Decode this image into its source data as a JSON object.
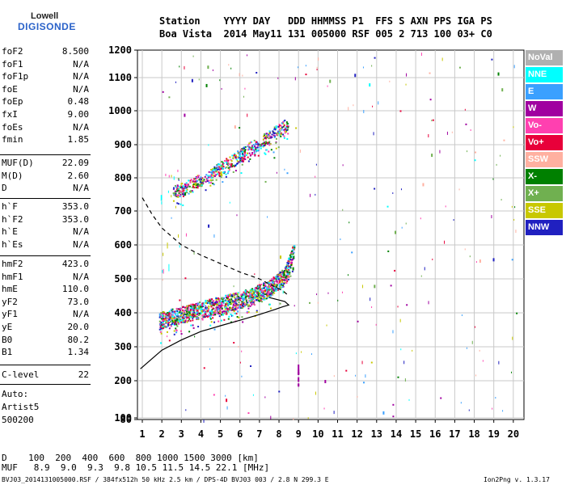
{
  "logo": {
    "line1": "Lowell",
    "line2": "DIGISONDE"
  },
  "header": {
    "row1": "Station    YYYY DAY   DDD HHMMSS P1  FFS S AXN PPS IGA PS",
    "row2": "Boa Vista  2014 May11 131 005000 RSF 005 2 713 100 03+ C0"
  },
  "params": {
    "group1": [
      {
        "k": "foF2",
        "v": "8.500"
      },
      {
        "k": "foF1",
        "v": "N/A"
      },
      {
        "k": "foF1p",
        "v": "N/A"
      },
      {
        "k": "foE",
        "v": "N/A"
      },
      {
        "k": "foEp",
        "v": "0.48"
      },
      {
        "k": "fxI",
        "v": "9.00"
      },
      {
        "k": "foEs",
        "v": "N/A"
      },
      {
        "k": "fmin",
        "v": "1.85"
      }
    ],
    "group2": [
      {
        "k": "MUF(D)",
        "v": "22.09"
      },
      {
        "k": "M(D)",
        "v": "2.60"
      },
      {
        "k": "D",
        "v": "N/A"
      }
    ],
    "group3": [
      {
        "k": "h`F",
        "v": "353.0"
      },
      {
        "k": "h`F2",
        "v": "353.0"
      },
      {
        "k": "h`E",
        "v": "N/A"
      },
      {
        "k": "h`Es",
        "v": "N/A"
      }
    ],
    "group4": [
      {
        "k": "hmF2",
        "v": "423.0"
      },
      {
        "k": "hmF1",
        "v": "N/A"
      },
      {
        "k": "hmE",
        "v": "110.0"
      },
      {
        "k": "yF2",
        "v": "73.0"
      },
      {
        "k": "yF1",
        "v": "N/A"
      },
      {
        "k": "yE",
        "v": "20.0"
      },
      {
        "k": "B0",
        "v": "80.2"
      },
      {
        "k": "B1",
        "v": "1.34"
      }
    ],
    "group5": [
      {
        "k": "C-level",
        "v": "22"
      }
    ],
    "auto": [
      "Auto:",
      "Artist5",
      "500200"
    ]
  },
  "legend": [
    {
      "label": "NoVal",
      "color": "#b0b0b0"
    },
    {
      "label": "NNE",
      "color": "#00ffff"
    },
    {
      "label": "E",
      "color": "#3aa0ff"
    },
    {
      "label": "W",
      "color": "#a000a0"
    },
    {
      "label": "Vo-",
      "color": "#ff40b0"
    },
    {
      "label": "Vo+",
      "color": "#e8003a"
    },
    {
      "label": "SSW",
      "color": "#ffb0a0"
    },
    {
      "label": "X-",
      "color": "#008000"
    },
    {
      "label": "X+",
      "color": "#70b050"
    },
    {
      "label": "SSE",
      "color": "#c8c800"
    },
    {
      "label": "NNW",
      "color": "#2020c0"
    }
  ],
  "bottom": {
    "row1": "D    100  200  400  600  800 1000 1500 3000 [km]",
    "row2": "MUF   8.9  9.0  9.3  9.8 10.5 11.5 14.5 22.1 [MHz]",
    "footer_left": "BVJ03_2014131005000.RSF / 384fx512h 50 kHz 2.5 km / DPS-4D BVJ03 003 / 2.8 N 299.3 E",
    "footer_right": "Ion2Png v. 1.3.17"
  },
  "chart_data": {
    "type": "scatter",
    "x_ticks": [
      1,
      2,
      3,
      4,
      5,
      6,
      7,
      8,
      9,
      10,
      11,
      12,
      13,
      14,
      15,
      16,
      17,
      18,
      19,
      20
    ],
    "y_ticks": [
      80,
      100,
      200,
      300,
      400,
      500,
      600,
      700,
      800,
      900,
      1000,
      1100,
      1200
    ],
    "xlim": [
      0.9,
      20.3
    ],
    "ylim": [
      80,
      1200
    ],
    "grid": true,
    "profile_solid": [
      [
        0.9,
        235
      ],
      [
        1.5,
        265
      ],
      [
        2,
        290
      ],
      [
        3,
        320
      ],
      [
        4,
        345
      ],
      [
        5,
        362
      ],
      [
        6,
        378
      ],
      [
        7,
        395
      ],
      [
        7.8,
        410
      ],
      [
        8.2,
        418
      ],
      [
        8.5,
        423
      ],
      [
        8.3,
        433
      ],
      [
        7.5,
        445
      ]
    ],
    "profile_dashed": [
      [
        1,
        740
      ],
      [
        1.5,
        690
      ],
      [
        2,
        650
      ],
      [
        3,
        600
      ],
      [
        4,
        570
      ],
      [
        5,
        545
      ],
      [
        6,
        520
      ],
      [
        7,
        500
      ],
      [
        7.6,
        482
      ],
      [
        8.2,
        465
      ],
      [
        8.5,
        450
      ]
    ],
    "o_trace": [
      [
        1.9,
        375
      ],
      [
        2.5,
        385
      ],
      [
        3.5,
        400
      ],
      [
        4.5,
        415
      ],
      [
        5.5,
        430
      ],
      [
        6.5,
        445
      ],
      [
        7.5,
        470
      ],
      [
        8.3,
        505
      ],
      [
        8.6,
        550
      ],
      [
        8.8,
        590
      ]
    ],
    "second_hop": [
      [
        2.6,
        755
      ],
      [
        3.5,
        775
      ],
      [
        4.5,
        810
      ],
      [
        5.5,
        845
      ],
      [
        6.5,
        885
      ],
      [
        7.5,
        920
      ],
      [
        8.5,
        960
      ]
    ]
  }
}
